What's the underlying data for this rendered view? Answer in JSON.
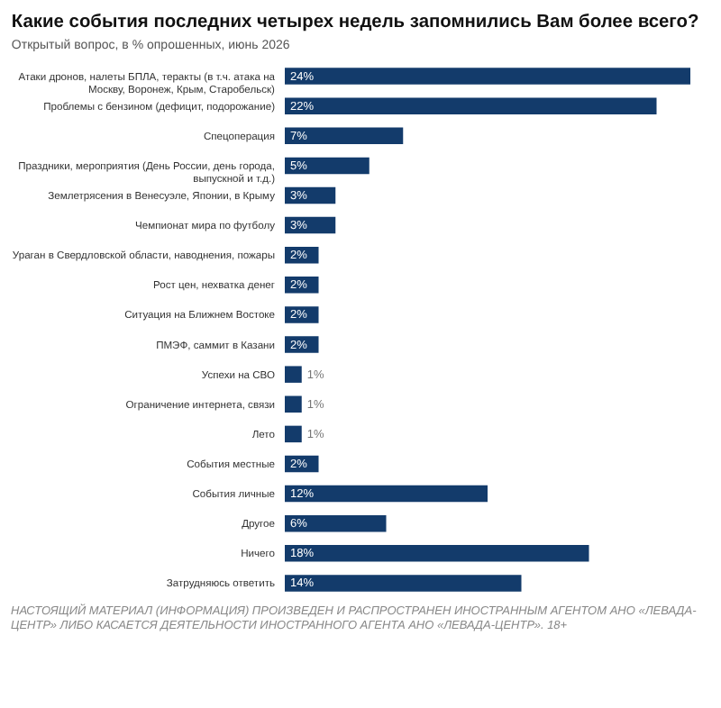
{
  "chart_data": {
    "type": "bar",
    "orientation": "horizontal",
    "title": "Какие события последних четырех недель запомнились Вам более всего?",
    "subtitle": "Открытый вопрос, в % опрошенных, июнь 2026",
    "categories": [
      "Атаки дронов, налеты БПЛА, теракты (в т.ч. атака на Москву, Воронеж, Крым, Старобельск)",
      "Проблемы с бензином (дефицит, подорожание)",
      "Спецоперация",
      "Праздники, мероприятия (День России, день города, выпускной и т.д.)",
      "Землетрясения в Венесуэле, Японии, в Крыму",
      "Чемпионат мира по футболу",
      "Ураган в Свердловской области, наводнения, пожары",
      "Рост цен, нехватка денег",
      "Ситуация на Ближнем Востоке",
      "ПМЭФ, саммит в Казани",
      "Успехи на СВО",
      "Ограничение интернета, связи",
      "Лето",
      "События местные",
      "События личные",
      "Другое",
      "Ничего",
      "Затрудняюсь ответить"
    ],
    "values": [
      24,
      22,
      7,
      5,
      3,
      3,
      2,
      2,
      2,
      2,
      1,
      1,
      1,
      2,
      12,
      6,
      18,
      14
    ],
    "value_labels": [
      "24%",
      "22%",
      "7%",
      "5%",
      "3%",
      "3%",
      "2%",
      "2%",
      "2%",
      "2%",
      "1%",
      "1%",
      "1%",
      "2%",
      "12%",
      "6%",
      "18%",
      "14%"
    ],
    "color": "#133b6b",
    "annotations": [
      "НАСТОЯЩИЙ МАТЕРИАЛ (ИНФОРМАЦИЯ) ПРОИЗВЕДЕН И РАСПРОСТРАНЕН ИНОСТРАННЫМ АГЕНТОМ АНО «ЛЕВАДА-ЦЕНТР» ЛИБО КАСАЕТСЯ ДЕЯТЕЛЬНОСТИ ИНОСТРАННОГО АГЕНТА АНО «ЛЕВАДА-ЦЕНТР». 18+"
    ]
  }
}
